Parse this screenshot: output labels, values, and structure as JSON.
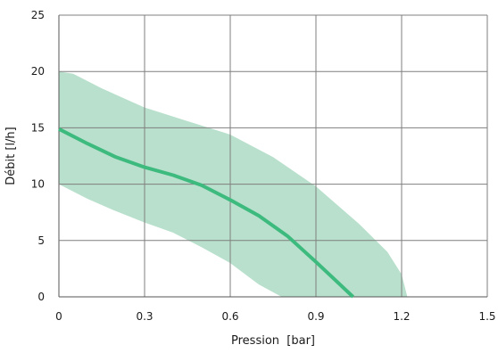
{
  "chart_data": {
    "type": "line",
    "xlabel": "Pression  [bar]",
    "ylabel": "Débit [l/h]",
    "xlim": [
      0,
      1.5
    ],
    "ylim": [
      0,
      25
    ],
    "x_ticks": [
      0,
      0.3,
      0.6,
      0.9,
      1.2,
      1.5
    ],
    "x_tick_labels": [
      "0",
      "0.3",
      "0.6",
      "0.9",
      "1.2",
      "1.5"
    ],
    "y_ticks": [
      0,
      5,
      10,
      15,
      20,
      25
    ],
    "y_tick_labels": [
      "0",
      "5",
      "10",
      "15",
      "20",
      "25"
    ],
    "grid": true,
    "colors": {
      "line": "#3dba7e",
      "band": "#b8e0cc",
      "grid": "#7f7f7f",
      "axis": "#555555"
    },
    "series": [
      {
        "values": [
          [
            0,
            14.9
          ],
          [
            0.1,
            13.6
          ],
          [
            0.2,
            12.4
          ],
          [
            0.3,
            11.5
          ],
          [
            0.4,
            10.8
          ],
          [
            0.5,
            9.9
          ],
          [
            0.6,
            8.6
          ],
          [
            0.7,
            7.2
          ],
          [
            0.8,
            5.4
          ],
          [
            0.9,
            3.1
          ],
          [
            1.03,
            0
          ]
        ]
      }
    ],
    "band": {
      "upper": [
        [
          0,
          20
        ],
        [
          0.05,
          19.8
        ],
        [
          0.15,
          18.5
        ],
        [
          0.3,
          16.8
        ],
        [
          0.45,
          15.6
        ],
        [
          0.6,
          14.4
        ],
        [
          0.75,
          12.4
        ],
        [
          0.9,
          9.8
        ],
        [
          1.05,
          6.5
        ],
        [
          1.15,
          4.0
        ],
        [
          1.2,
          2.0
        ],
        [
          1.22,
          0
        ]
      ],
      "lower": [
        [
          0,
          10
        ],
        [
          0.1,
          8.7
        ],
        [
          0.2,
          7.6
        ],
        [
          0.3,
          6.6
        ],
        [
          0.4,
          5.7
        ],
        [
          0.5,
          4.4
        ],
        [
          0.6,
          3.0
        ],
        [
          0.7,
          1.1
        ],
        [
          0.78,
          0
        ]
      ]
    }
  }
}
